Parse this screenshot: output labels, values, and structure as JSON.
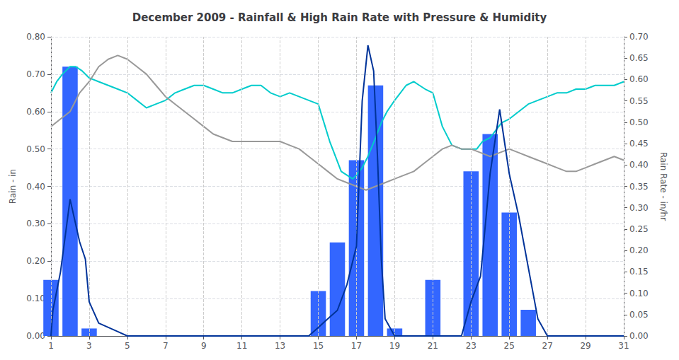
{
  "chart_data": {
    "type": "bar",
    "title": "December 2009 - Rainfall & High Rain Rate with Pressure & Humidity",
    "ylabel": "Rain - in",
    "y2label": "Rain Rate - in/hr",
    "xlim": [
      1,
      31
    ],
    "xticks": [
      1,
      3,
      5,
      7,
      9,
      11,
      13,
      15,
      17,
      19,
      21,
      23,
      25,
      27,
      29,
      31
    ],
    "ylim": [
      0.0,
      0.8
    ],
    "yticks": [
      {
        "value": 0.0,
        "label": "0.00"
      },
      {
        "value": 0.1,
        "label": "0.10"
      },
      {
        "value": 0.2,
        "label": "0.20"
      },
      {
        "value": 0.3,
        "label": "0.30"
      },
      {
        "value": 0.4,
        "label": "0.40"
      },
      {
        "value": 0.5,
        "label": "0.50"
      },
      {
        "value": 0.6,
        "label": "0.60"
      },
      {
        "value": 0.7,
        "label": "0.70"
      },
      {
        "value": 0.8,
        "label": "0.80"
      }
    ],
    "y2lim": [
      0.0,
      0.7
    ],
    "y2ticks": [
      {
        "value": 0.0,
        "label": "0.00"
      },
      0.05,
      {
        "value": 0.1,
        "label": "0.10"
      },
      0.15,
      {
        "value": 0.2,
        "label": "0.20"
      },
      0.25,
      {
        "value": 0.3,
        "label": "0.30"
      },
      0.35,
      {
        "value": 0.4,
        "label": "0.40"
      },
      0.45,
      {
        "value": 0.5,
        "label": "0.50"
      },
      0.55,
      {
        "value": 0.6,
        "label": "0.60"
      },
      0.65,
      {
        "value": 0.7,
        "label": "0.70"
      }
    ],
    "grid": true,
    "series": [
      {
        "type": "bar",
        "color": "#3366ff",
        "x": [
          1,
          2,
          3,
          4,
          5,
          6,
          7,
          8,
          9,
          10,
          11,
          12,
          13,
          14,
          15,
          16,
          17,
          18,
          19,
          20,
          21,
          22,
          23,
          24,
          25,
          26,
          27,
          28,
          29,
          30,
          31
        ],
        "values": [
          0.15,
          0.72,
          0.02,
          0.0,
          0.0,
          0.0,
          0.0,
          0.0,
          0.0,
          0.0,
          0.0,
          0.0,
          0.0,
          0.0,
          0.12,
          0.25,
          0.47,
          0.67,
          0.02,
          0.0,
          0.15,
          0.0,
          0.44,
          0.54,
          0.33,
          0.07,
          0.0,
          0.0,
          0.0,
          0.0,
          0.0
        ]
      },
      {
        "type": "line",
        "color": "#00cccc",
        "x": [
          1.0,
          1.3,
          1.6,
          2.0,
          2.3,
          2.6,
          3.0,
          3.5,
          4.0,
          4.5,
          5.0,
          5.5,
          6.0,
          6.5,
          7.0,
          7.5,
          8.0,
          8.5,
          9.0,
          9.5,
          10.0,
          10.5,
          11.0,
          11.5,
          12.0,
          12.5,
          13.0,
          13.5,
          14.0,
          14.5,
          15.0,
          15.3,
          15.6,
          15.9,
          16.2,
          16.5,
          16.8,
          17.0,
          17.3,
          17.6,
          18.0,
          18.3,
          18.6,
          19.0,
          19.3,
          19.6,
          20.0,
          20.3,
          20.6,
          21.0,
          21.5,
          22.0,
          22.5,
          23.0,
          23.3,
          23.6,
          24.0,
          24.3,
          24.6,
          25.0,
          25.5,
          26.0,
          26.5,
          27.0,
          27.5,
          28.0,
          28.5,
          29.0,
          29.5,
          30.0,
          30.5,
          31.0
        ],
        "values": [
          0.65,
          0.68,
          0.7,
          0.72,
          0.72,
          0.71,
          0.69,
          0.68,
          0.67,
          0.66,
          0.65,
          0.63,
          0.61,
          0.62,
          0.63,
          0.65,
          0.66,
          0.67,
          0.67,
          0.66,
          0.65,
          0.65,
          0.66,
          0.67,
          0.67,
          0.65,
          0.64,
          0.65,
          0.64,
          0.63,
          0.62,
          0.57,
          0.52,
          0.48,
          0.44,
          0.43,
          0.42,
          0.43,
          0.45,
          0.48,
          0.53,
          0.57,
          0.6,
          0.63,
          0.65,
          0.67,
          0.68,
          0.67,
          0.66,
          0.65,
          0.56,
          0.51,
          0.5,
          0.5,
          0.5,
          0.52,
          0.53,
          0.55,
          0.57,
          0.58,
          0.6,
          0.62,
          0.63,
          0.64,
          0.65,
          0.65,
          0.66,
          0.66,
          0.67,
          0.67,
          0.67,
          0.68
        ]
      },
      {
        "type": "line",
        "color": "#999999",
        "x": [
          1.0,
          1.5,
          2.0,
          2.5,
          3.0,
          3.5,
          4.0,
          4.5,
          5.0,
          5.5,
          6.0,
          6.5,
          7.0,
          7.5,
          8.0,
          8.5,
          9.0,
          9.5,
          10.0,
          10.5,
          11.0,
          11.5,
          12.0,
          12.5,
          13.0,
          13.5,
          14.0,
          14.5,
          15.0,
          15.5,
          16.0,
          16.5,
          17.0,
          17.5,
          18.0,
          18.5,
          19.0,
          19.5,
          20.0,
          20.5,
          21.0,
          21.5,
          22.0,
          22.5,
          23.0,
          23.5,
          24.0,
          24.5,
          25.0,
          25.5,
          26.0,
          26.5,
          27.0,
          27.5,
          28.0,
          28.5,
          29.0,
          29.5,
          30.0,
          30.5,
          31.0
        ],
        "values": [
          0.56,
          0.58,
          0.6,
          0.65,
          0.68,
          0.72,
          0.74,
          0.75,
          0.74,
          0.72,
          0.7,
          0.67,
          0.64,
          0.62,
          0.6,
          0.58,
          0.56,
          0.54,
          0.53,
          0.52,
          0.52,
          0.52,
          0.52,
          0.52,
          0.52,
          0.51,
          0.5,
          0.48,
          0.46,
          0.44,
          0.42,
          0.41,
          0.4,
          0.39,
          0.4,
          0.41,
          0.42,
          0.43,
          0.44,
          0.46,
          0.48,
          0.5,
          0.51,
          0.5,
          0.5,
          0.49,
          0.48,
          0.49,
          0.5,
          0.49,
          0.48,
          0.47,
          0.46,
          0.45,
          0.44,
          0.44,
          0.45,
          0.46,
          0.47,
          0.48,
          0.47
        ]
      },
      {
        "type": "line",
        "color": "#003399",
        "axis": "y2",
        "x": [
          1.0,
          1.1,
          1.5,
          2.0,
          2.5,
          2.8,
          3.0,
          3.5,
          4.0,
          4.5,
          5.0,
          5.5,
          6.0,
          6.5,
          7.0,
          7.5,
          8.0,
          8.5,
          9.0,
          9.5,
          10.0,
          10.5,
          11.0,
          11.5,
          12.0,
          12.5,
          13.0,
          13.5,
          14.0,
          14.5,
          15.0,
          15.5,
          16.0,
          16.5,
          17.0,
          17.3,
          17.6,
          17.9,
          18.1,
          18.3,
          18.5,
          19.0,
          19.5,
          20.0,
          20.5,
          21.0,
          21.5,
          22.0,
          22.5,
          23.0,
          23.5,
          24.0,
          24.5,
          25.0,
          25.5,
          26.0,
          26.5,
          27.0,
          27.5,
          28.0,
          28.5,
          29.0,
          29.5,
          30.0,
          30.5,
          31.0
        ],
        "values": [
          0.0,
          0.06,
          0.15,
          0.32,
          0.22,
          0.18,
          0.08,
          0.03,
          0.02,
          0.01,
          0.0,
          0.0,
          0.0,
          0.0,
          0.0,
          0.0,
          0.0,
          0.0,
          0.0,
          0.0,
          0.0,
          0.0,
          0.0,
          0.0,
          0.0,
          0.0,
          0.0,
          0.0,
          0.0,
          0.0,
          0.02,
          0.04,
          0.06,
          0.12,
          0.21,
          0.55,
          0.68,
          0.62,
          0.42,
          0.18,
          0.04,
          0.0,
          0.0,
          0.0,
          0.0,
          0.0,
          0.0,
          0.0,
          0.0,
          0.08,
          0.14,
          0.38,
          0.53,
          0.38,
          0.28,
          0.16,
          0.04,
          0.0,
          0.0,
          0.0,
          0.0,
          0.0,
          0.0,
          0.0,
          0.0,
          0.0
        ]
      }
    ]
  }
}
